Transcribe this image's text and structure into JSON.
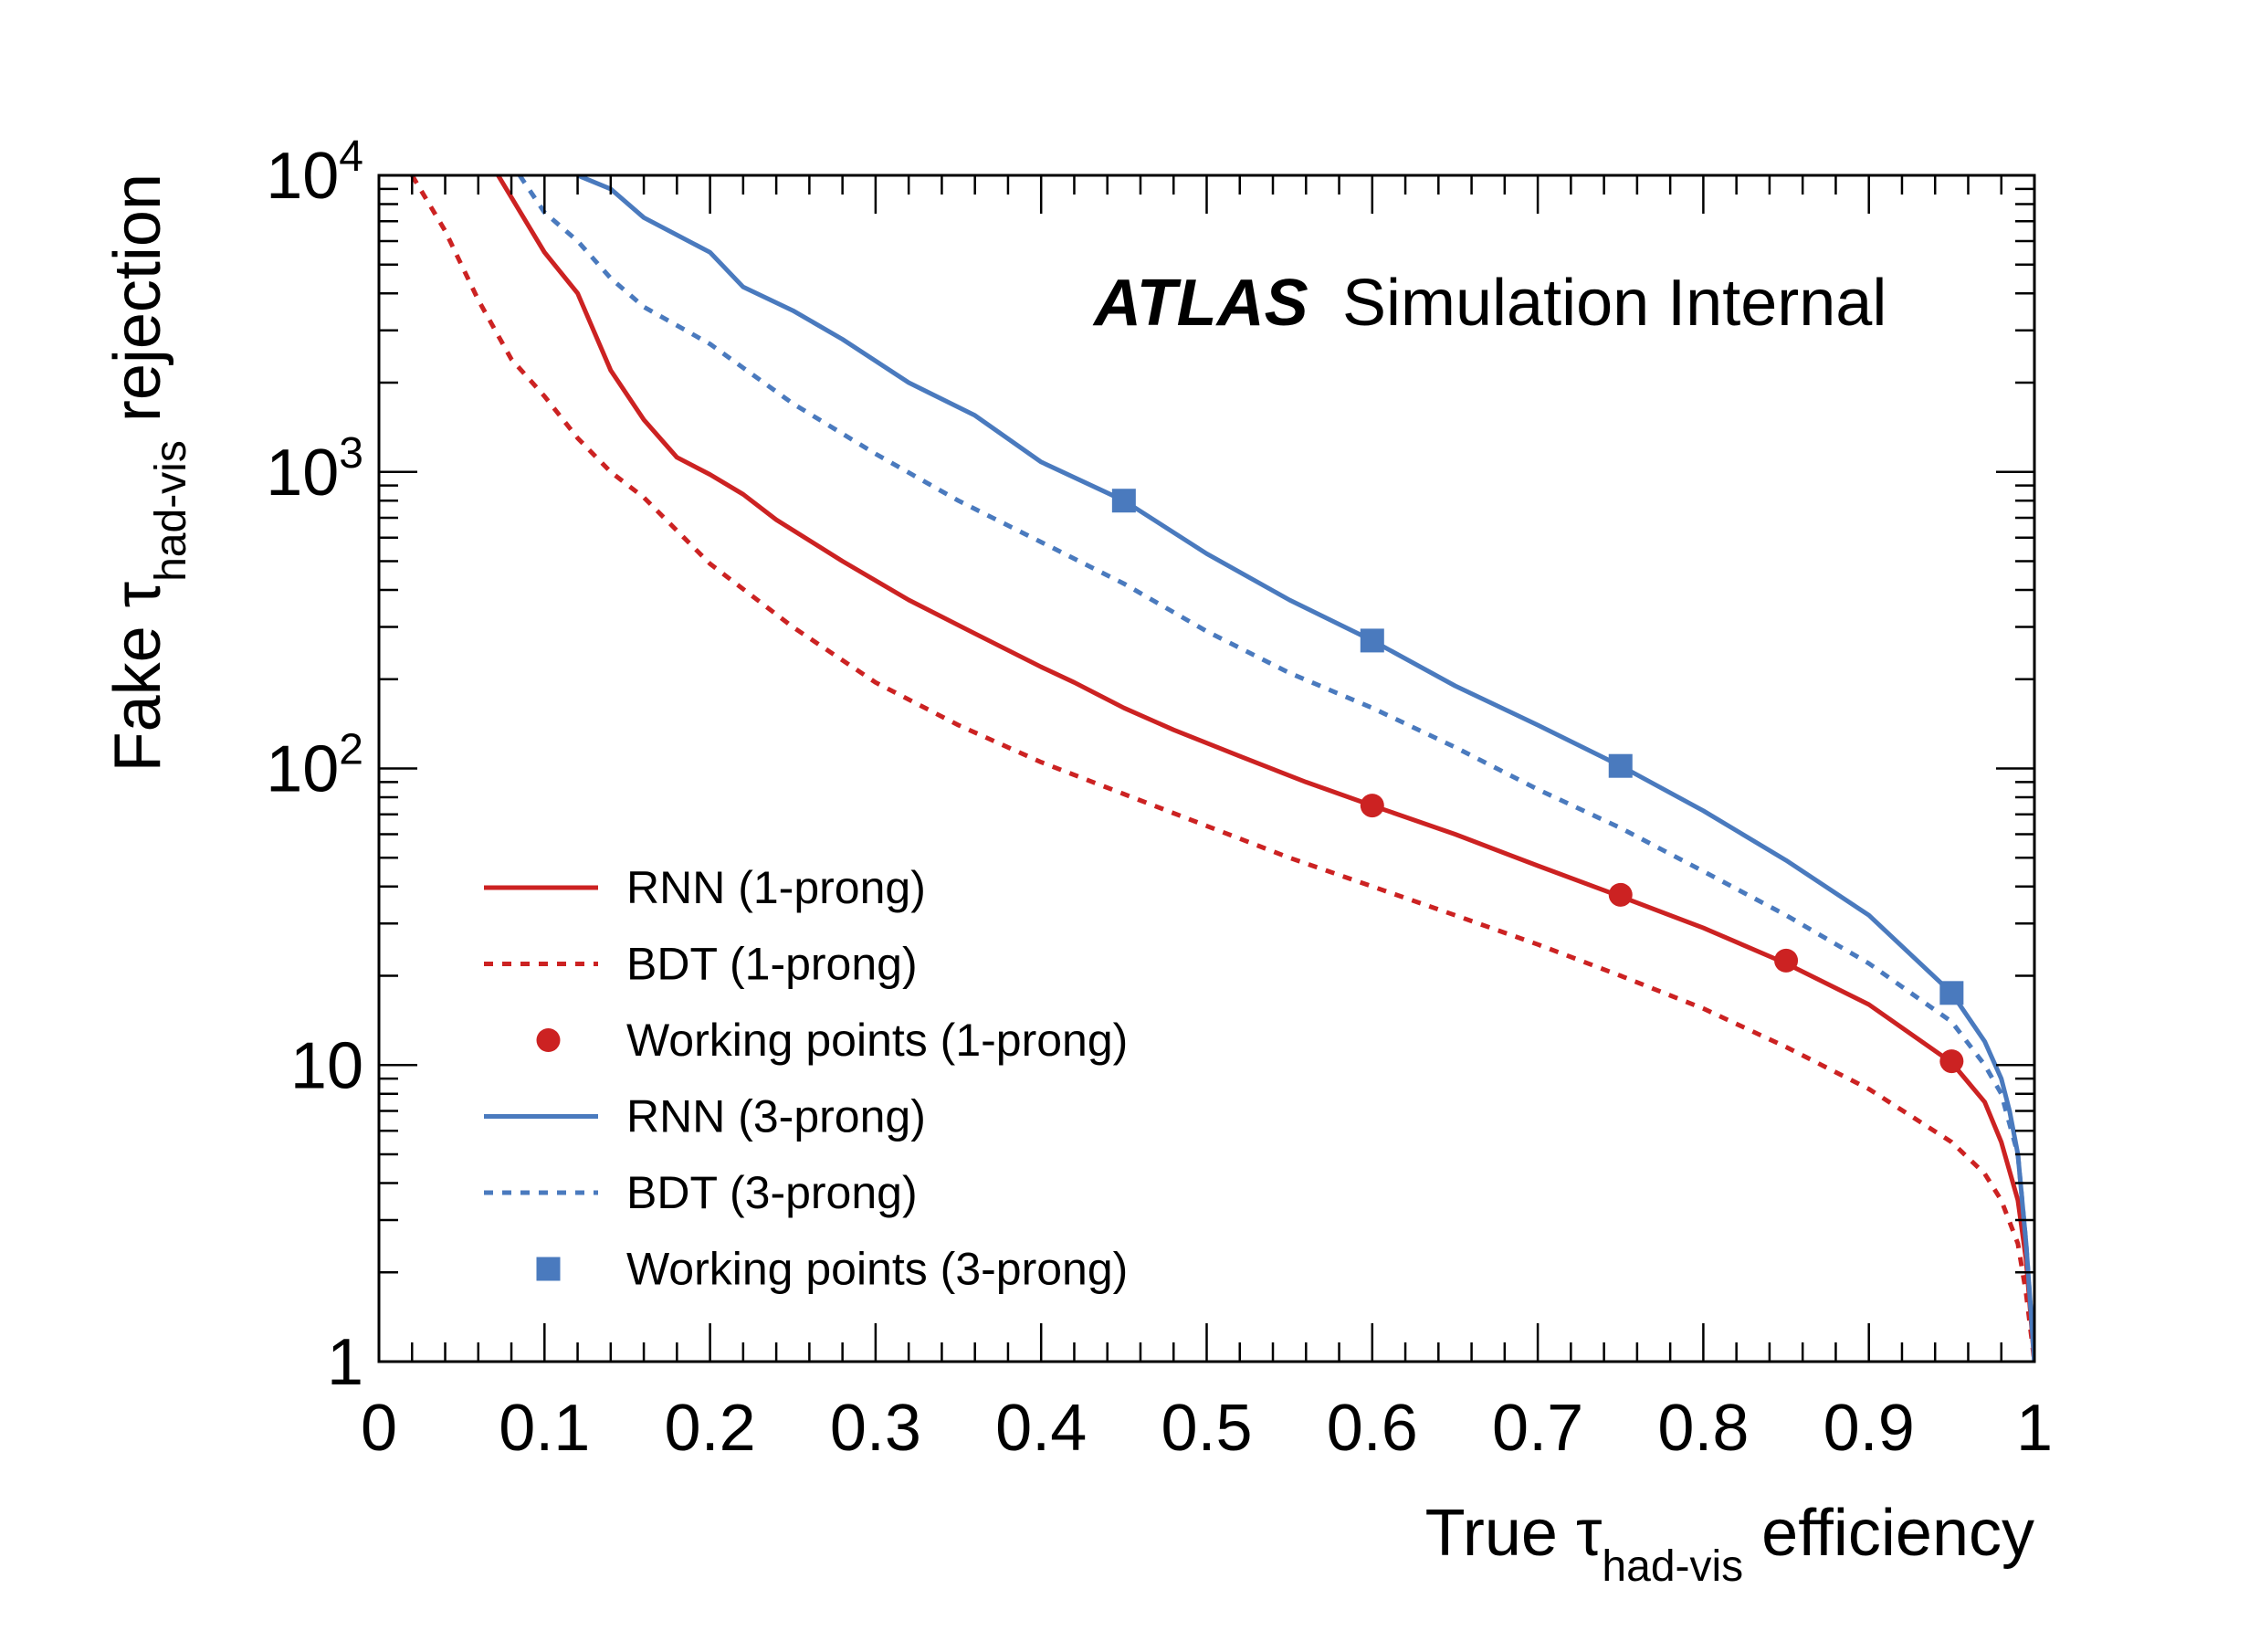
{
  "labels": {
    "atlas": "ATLAS",
    "status": "Simulation Internal"
  },
  "chart_data": {
    "type": "line",
    "xlabel": {
      "prefix": "True",
      "symbol": "τ",
      "subscript": "had-vis",
      "suffix": "efficiency"
    },
    "ylabel": {
      "prefix": "Fake",
      "symbol": "τ",
      "subscript": "had-vis",
      "suffix": "rejection"
    },
    "xlim": [
      0,
      1
    ],
    "ylim": [
      1,
      10000
    ],
    "yscale": "log",
    "grid": false,
    "legend_position": "lower-left",
    "x_ticks": [
      {
        "value": 0,
        "label": "0"
      },
      {
        "value": 0.1,
        "label": "0.1"
      },
      {
        "value": 0.2,
        "label": "0.2"
      },
      {
        "value": 0.3,
        "label": "0.3"
      },
      {
        "value": 0.4,
        "label": "0.4"
      },
      {
        "value": 0.5,
        "label": "0.5"
      },
      {
        "value": 0.6,
        "label": "0.6"
      },
      {
        "value": 0.7,
        "label": "0.7"
      },
      {
        "value": 0.8,
        "label": "0.8"
      },
      {
        "value": 0.9,
        "label": "0.9"
      },
      {
        "value": 1,
        "label": "1"
      }
    ],
    "y_ticks": [
      {
        "value": 1,
        "base": "1",
        "exp": ""
      },
      {
        "value": 10,
        "base": "10",
        "exp": ""
      },
      {
        "value": 100,
        "base": "10",
        "exp": "2"
      },
      {
        "value": 1000,
        "base": "10",
        "exp": "3"
      },
      {
        "value": 10000,
        "base": "10",
        "exp": "4"
      }
    ],
    "series": [
      {
        "name": "RNN (1-prong)",
        "kind": "line",
        "style": "solid",
        "color": "#cc2222",
        "x": [
          0.072,
          0.1,
          0.12,
          0.14,
          0.16,
          0.18,
          0.2,
          0.22,
          0.24,
          0.28,
          0.32,
          0.36,
          0.4,
          0.42,
          0.45,
          0.48,
          0.52,
          0.56,
          0.6,
          0.65,
          0.7,
          0.75,
          0.8,
          0.85,
          0.9,
          0.95,
          0.97,
          0.98,
          0.99,
          0.995,
          1.0
        ],
        "y": [
          10000,
          5500,
          4000,
          2200,
          1500,
          1120,
          980,
          840,
          690,
          500,
          370,
          285,
          220,
          195,
          160,
          135,
          110,
          90,
          75,
          60,
          47,
          37,
          29,
          22,
          16,
          10.2,
          7.5,
          5.5,
          3.5,
          2.2,
          1.0
        ]
      },
      {
        "name": "BDT (1-prong)",
        "kind": "line",
        "style": "dashed",
        "color": "#cc2222",
        "x": [
          0.02,
          0.04,
          0.06,
          0.08,
          0.1,
          0.12,
          0.14,
          0.16,
          0.2,
          0.25,
          0.3,
          0.35,
          0.4,
          0.45,
          0.5,
          0.55,
          0.6,
          0.65,
          0.7,
          0.75,
          0.8,
          0.85,
          0.9,
          0.95,
          0.97,
          0.98,
          0.99,
          0.995,
          1.0
        ],
        "y": [
          10000,
          6500,
          3800,
          2400,
          1800,
          1300,
          1000,
          820,
          490,
          300,
          195,
          140,
          105,
          82,
          64,
          50,
          40,
          32,
          25.5,
          20,
          15.5,
          11.5,
          8.3,
          5.5,
          4.3,
          3.5,
          2.5,
          1.7,
          1.0
        ]
      },
      {
        "name": "Working points (1-prong)",
        "kind": "scatter",
        "marker": "circle",
        "color": "#cc2222",
        "x": [
          0.6,
          0.75,
          0.85,
          0.95
        ],
        "y": [
          75,
          37.5,
          22.5,
          10.3
        ]
      },
      {
        "name": "RNN (3-prong)",
        "kind": "line",
        "style": "solid",
        "color": "#4a7abe",
        "x": [
          0.12,
          0.14,
          0.16,
          0.2,
          0.22,
          0.25,
          0.28,
          0.32,
          0.36,
          0.4,
          0.45,
          0.5,
          0.55,
          0.6,
          0.65,
          0.7,
          0.75,
          0.8,
          0.85,
          0.9,
          0.95,
          0.97,
          0.98,
          0.985,
          0.99,
          0.995,
          1.0
        ],
        "y": [
          10000,
          9000,
          7200,
          5500,
          4200,
          3500,
          2800,
          2000,
          1550,
          1080,
          800,
          530,
          370,
          270,
          190,
          140,
          102,
          72,
          49,
          32,
          17.5,
          12,
          9,
          7,
          5,
          2.5,
          1.0
        ]
      },
      {
        "name": "BDT (3-prong)",
        "kind": "line",
        "style": "dashed",
        "color": "#4a7abe",
        "x": [
          0.085,
          0.1,
          0.12,
          0.14,
          0.16,
          0.2,
          0.25,
          0.3,
          0.35,
          0.4,
          0.45,
          0.5,
          0.55,
          0.6,
          0.65,
          0.7,
          0.75,
          0.8,
          0.85,
          0.9,
          0.95,
          0.97,
          0.98,
          0.99,
          0.995,
          1.0
        ],
        "y": [
          10000,
          7500,
          6000,
          4500,
          3600,
          2700,
          1700,
          1150,
          800,
          580,
          420,
          290,
          210,
          160,
          118,
          85,
          63,
          45,
          32,
          22,
          14,
          10,
          8,
          5,
          2.5,
          1.0
        ]
      },
      {
        "name": "Working points (3-prong)",
        "kind": "scatter",
        "marker": "square",
        "color": "#4a7abe",
        "x": [
          0.45,
          0.6,
          0.75,
          0.95
        ],
        "y": [
          800,
          270,
          102,
          17.5
        ]
      }
    ]
  }
}
